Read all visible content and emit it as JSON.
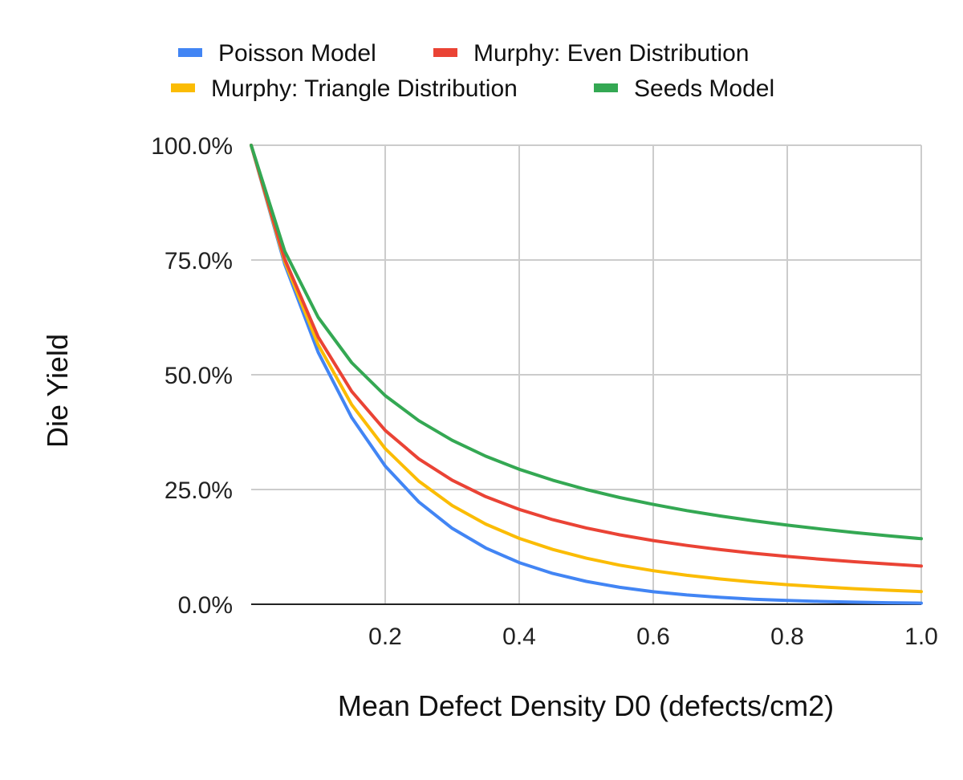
{
  "chart_data": {
    "type": "line",
    "title": "",
    "xlabel": "Mean Defect Density D0 (defects/cm2)",
    "ylabel": "Die Yield",
    "xlim": [
      0,
      1.0
    ],
    "ylim": [
      0,
      1.0
    ],
    "x_ticks": [
      0.2,
      0.4,
      0.6,
      0.8,
      1.0
    ],
    "x_tick_labels": [
      "0.2",
      "0.4",
      "0.6",
      "0.8",
      "1.0"
    ],
    "y_ticks": [
      0,
      0.25,
      0.5,
      0.75,
      1.0
    ],
    "y_tick_labels": [
      "0.0%",
      "25.0%",
      "50.0%",
      "75.0%",
      "100.0%"
    ],
    "grid": true,
    "legend_position": "top",
    "x": [
      0,
      0.05,
      0.1,
      0.15,
      0.2,
      0.25,
      0.3,
      0.35,
      0.4,
      0.45,
      0.5,
      0.55,
      0.6,
      0.65,
      0.7,
      0.75,
      0.8,
      0.85,
      0.9,
      0.95,
      1.0
    ],
    "series": [
      {
        "name": "Poisson Model",
        "color": "#4285F4",
        "values": [
          1.0,
          0.7408,
          0.5488,
          0.4066,
          0.3012,
          0.2231,
          0.1653,
          0.1225,
          0.0907,
          0.0672,
          0.0498,
          0.0369,
          0.0273,
          0.0202,
          0.015,
          0.0111,
          0.0082,
          0.0061,
          0.0045,
          0.0033,
          0.0025
        ]
      },
      {
        "name": "Murphy: Even Distribution",
        "color": "#EA4335",
        "values": [
          1.0,
          0.752,
          0.5823,
          0.4637,
          0.3789,
          0.3167,
          0.2702,
          0.2345,
          0.2066,
          0.1843,
          0.1663,
          0.1513,
          0.1388,
          0.1282,
          0.119,
          0.1111,
          0.1042,
          0.098,
          0.0926,
          0.0877,
          0.0833
        ]
      },
      {
        "name": "Murphy: Triangle Distribution",
        "color": "#FBBC04",
        "values": [
          1.0,
          0.7465,
          0.5655,
          0.4347,
          0.3391,
          0.2683,
          0.215,
          0.1746,
          0.1435,
          0.1194,
          0.1003,
          0.0852,
          0.073,
          0.0631,
          0.055,
          0.0483,
          0.0427,
          0.038,
          0.034,
          0.0306,
          0.0276
        ]
      },
      {
        "name": "Seeds Model",
        "color": "#34A853",
        "values": [
          1.0,
          0.7692,
          0.625,
          0.5263,
          0.4545,
          0.4,
          0.3571,
          0.3226,
          0.2941,
          0.2703,
          0.25,
          0.2326,
          0.2174,
          0.2041,
          0.1923,
          0.1818,
          0.1724,
          0.1639,
          0.1563,
          0.1493,
          0.1429
        ]
      }
    ]
  }
}
